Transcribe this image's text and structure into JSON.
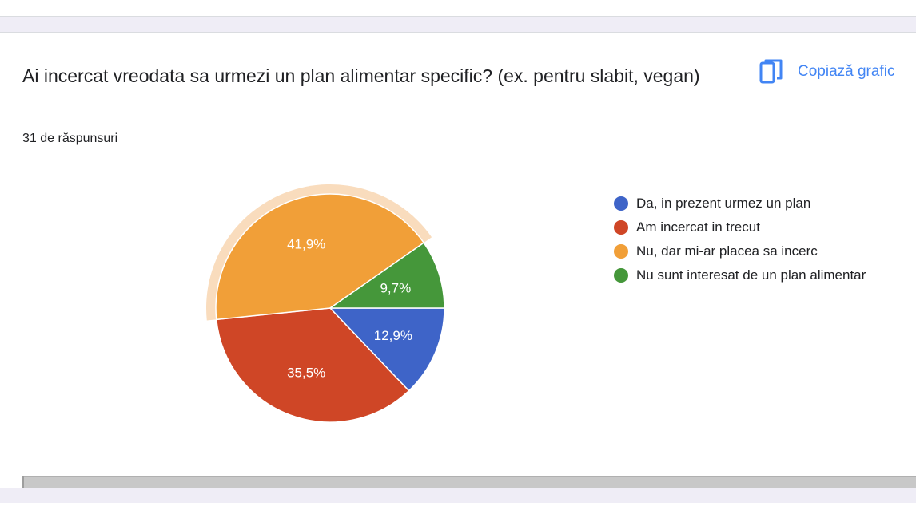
{
  "question": {
    "title": "Ai incercat vreodata sa urmezi un plan alimentar specific? (ex. pentru slabit, vegan)",
    "response_count": "31 de răspunsuri"
  },
  "toolbar": {
    "copy_label": "Copiază grafic",
    "copy_icon": "copy-icon"
  },
  "colors": {
    "accent": "#4285f4",
    "highlight_ring": "#f9dcbd"
  },
  "chart_data": {
    "type": "pie",
    "title": "",
    "highlighted": "Nu, dar mi-ar placea sa incerc",
    "series": [
      {
        "name": "Da, in prezent urmez un plan",
        "value": 12.9,
        "label": "12,9%",
        "color": "#3e64c8"
      },
      {
        "name": "Am incercat in trecut",
        "value": 35.5,
        "label": "35,5%",
        "color": "#cf4626"
      },
      {
        "name": "Nu, dar mi-ar placea sa incerc",
        "value": 41.9,
        "label": "41,9%",
        "color": "#f19f38"
      },
      {
        "name": "Nu sunt interesat de un plan alimentar",
        "value": 9.7,
        "label": "9,7%",
        "color": "#45973a"
      }
    ],
    "legend": "right"
  }
}
